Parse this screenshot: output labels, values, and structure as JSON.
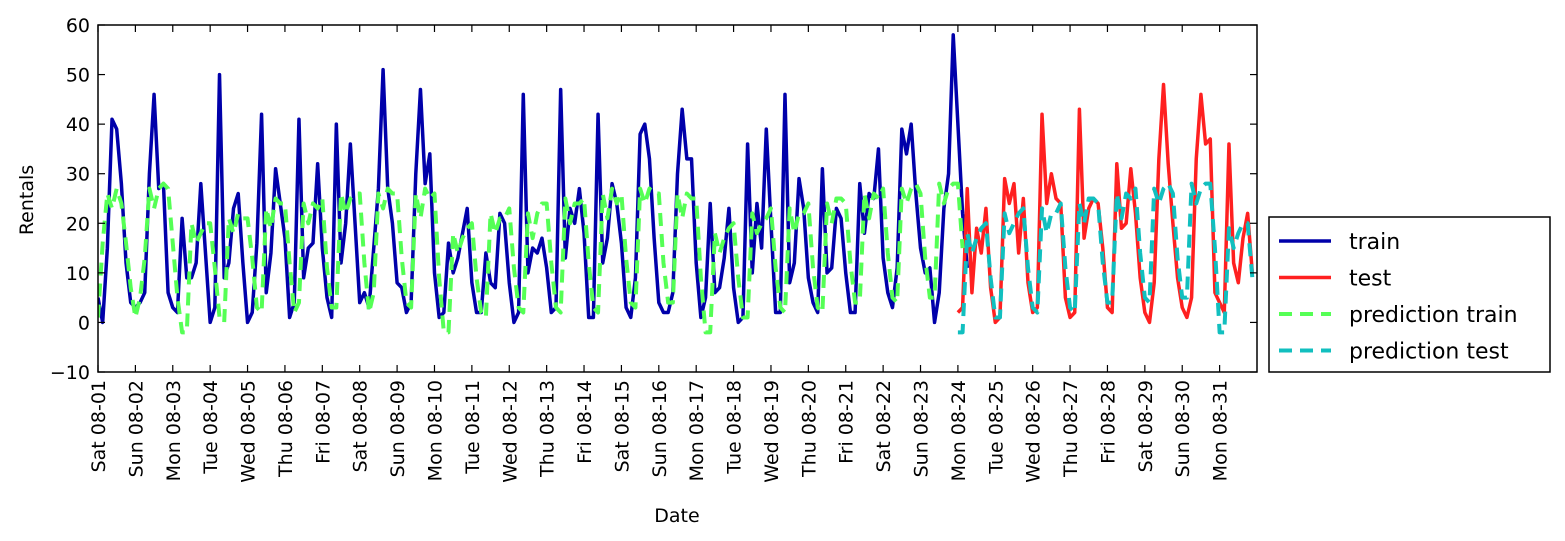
{
  "chart_data": {
    "type": "line",
    "title": "",
    "xlabel": "Date",
    "ylabel": "Rentals",
    "ylim": [
      -10,
      60
    ],
    "y_ticks": [
      "60",
      "50",
      "40",
      "30",
      "20",
      "10",
      "0",
      "−10"
    ],
    "y_tick_values": [
      60,
      50,
      40,
      30,
      20,
      10,
      0,
      -10
    ],
    "x_range": [
      "2015-08-01",
      "2015-09-01"
    ],
    "x_tick_labels": [
      "Sat 08-01",
      "Sun 08-02",
      "Mon 08-03",
      "Tue 08-04",
      "Wed 08-05",
      "Thu 08-06",
      "Fri 08-07",
      "Sat 08-08",
      "Sun 08-09",
      "Mon 08-10",
      "Tue 08-11",
      "Wed 08-12",
      "Thu 08-13",
      "Fri 08-14",
      "Sat 08-15",
      "Sun 08-16",
      "Mon 08-17",
      "Tue 08-18",
      "Wed 08-19",
      "Thu 08-20",
      "Fri 08-21",
      "Sat 08-22",
      "Sun 08-23",
      "Mon 08-24",
      "Tue 08-25",
      "Wed 08-26",
      "Thu 08-27",
      "Fri 08-28",
      "Sat 08-29",
      "Sun 08-30",
      "Mon 08-31"
    ],
    "legend_position": "outside-right",
    "grid": false,
    "colors": {
      "train": "#0000aa",
      "test": "#ff2020",
      "prediction_train": "#55ff55",
      "prediction_test": "#11bfbf"
    },
    "series": [
      {
        "name": "train",
        "key": "train",
        "style": "solid",
        "x_start": "2015-08-01 00:00",
        "values": [
          5,
          0,
          15,
          41,
          39,
          28,
          12,
          4,
          3,
          4,
          6,
          30,
          46,
          27,
          28,
          6,
          3,
          2,
          21,
          9,
          9,
          12,
          28,
          14,
          0,
          3,
          50,
          9,
          12,
          23,
          26,
          12,
          0,
          2,
          16,
          42,
          6,
          14,
          31,
          24,
          17,
          1,
          4,
          41,
          9,
          15,
          16,
          32,
          15,
          5,
          1,
          40,
          12,
          20,
          36,
          20,
          4,
          6,
          3,
          15,
          27,
          51,
          27,
          20,
          8,
          7,
          2,
          4,
          30,
          47,
          28,
          34,
          10,
          1,
          2,
          16,
          10,
          13,
          18,
          23,
          8,
          2,
          2,
          14,
          8,
          7,
          22,
          20,
          8,
          0,
          2,
          46,
          10,
          15,
          14,
          17,
          11,
          2,
          3,
          47,
          13,
          23,
          20,
          27,
          18,
          1,
          1,
          42,
          12,
          17,
          28,
          24,
          16,
          3,
          1,
          9,
          38,
          40,
          33,
          17,
          4,
          2,
          2,
          6,
          30,
          43,
          33,
          33,
          12,
          1,
          5,
          24,
          6,
          7,
          13,
          23,
          7,
          0,
          1,
          36,
          10,
          24,
          15,
          39,
          20,
          2,
          2,
          46,
          8,
          12,
          29,
          23,
          9,
          4,
          2,
          31,
          10,
          11,
          23,
          21,
          10,
          2,
          2,
          28,
          18,
          26,
          25,
          35,
          13,
          6,
          3,
          11,
          39,
          34,
          40,
          26,
          15,
          10,
          11,
          0,
          6,
          23,
          30,
          58,
          40,
          22,
          11
        ]
      },
      {
        "name": "test",
        "key": "test",
        "style": "solid",
        "x_start": "2015-08-24 00:00",
        "values": [
          2,
          3,
          27,
          6,
          19,
          14,
          23,
          7,
          0,
          1,
          29,
          24,
          28,
          14,
          25,
          8,
          2,
          3,
          42,
          24,
          30,
          25,
          24,
          5,
          1,
          2,
          43,
          17,
          23,
          25,
          24,
          15,
          3,
          2,
          32,
          19,
          20,
          31,
          22,
          9,
          2,
          0,
          8,
          33,
          48,
          32,
          20,
          9,
          3,
          1,
          5,
          33,
          46,
          36,
          37,
          6,
          4,
          2,
          36,
          12,
          8,
          17,
          22,
          10
        ]
      },
      {
        "name": "prediction train",
        "key": "prediction_train",
        "style": "dashed",
        "x_start": "2015-08-01 00:00",
        "values": [
          1,
          16,
          26,
          23,
          27,
          24,
          16,
          7,
          1,
          5,
          13,
          27,
          23,
          27,
          28,
          27,
          16,
          5,
          -2,
          -2,
          20,
          16,
          18,
          20,
          20,
          11,
          1,
          0,
          21,
          18,
          22,
          21,
          21,
          13,
          3,
          2,
          23,
          19,
          25,
          24,
          24,
          12,
          2,
          4,
          24,
          20,
          24,
          23,
          25,
          11,
          3,
          3,
          26,
          22,
          25,
          26,
          26,
          12,
          2,
          6,
          26,
          23,
          27,
          26,
          26,
          13,
          4,
          3,
          26,
          21,
          27,
          25,
          26,
          9,
          -2,
          -2,
          18,
          14,
          17,
          19,
          20,
          9,
          2,
          1,
          22,
          18,
          21,
          21,
          23,
          11,
          3,
          2,
          22,
          17,
          22,
          24,
          24,
          12,
          3,
          2,
          25,
          20,
          24,
          24,
          25,
          12,
          3,
          2,
          26,
          21,
          27,
          24,
          26,
          13,
          4,
          3,
          27,
          24,
          27,
          26,
          26,
          12,
          4,
          4,
          26,
          21,
          26,
          25,
          25,
          9,
          -2,
          -2,
          18,
          14,
          17,
          19,
          20,
          9,
          1,
          1,
          22,
          18,
          20,
          21,
          23,
          11,
          3,
          2,
          23,
          18,
          22,
          22,
          24,
          11,
          3,
          2,
          24,
          20,
          25,
          25,
          24,
          12,
          4,
          4,
          26,
          21,
          26,
          25,
          27,
          14,
          5,
          4,
          27,
          24,
          27,
          28,
          26,
          13,
          5,
          5,
          28,
          24,
          27,
          28,
          28,
          15
        ]
      },
      {
        "name": "prediction test",
        "key": "prediction_test",
        "style": "dashed",
        "x_start": "2015-08-24 00:00",
        "values": [
          -2,
          -2,
          18,
          14,
          17,
          19,
          20,
          9,
          1,
          1,
          22,
          18,
          20,
          22,
          23,
          11,
          3,
          2,
          23,
          18,
          22,
          22,
          24,
          11,
          3,
          2,
          24,
          20,
          25,
          25,
          24,
          12,
          4,
          4,
          26,
          21,
          26,
          25,
          27,
          14,
          5,
          4,
          27,
          24,
          27,
          28,
          26,
          13,
          5,
          5,
          28,
          24,
          27,
          28,
          28,
          15,
          -2,
          -2,
          19,
          15,
          18,
          20,
          20,
          9
        ]
      }
    ]
  }
}
